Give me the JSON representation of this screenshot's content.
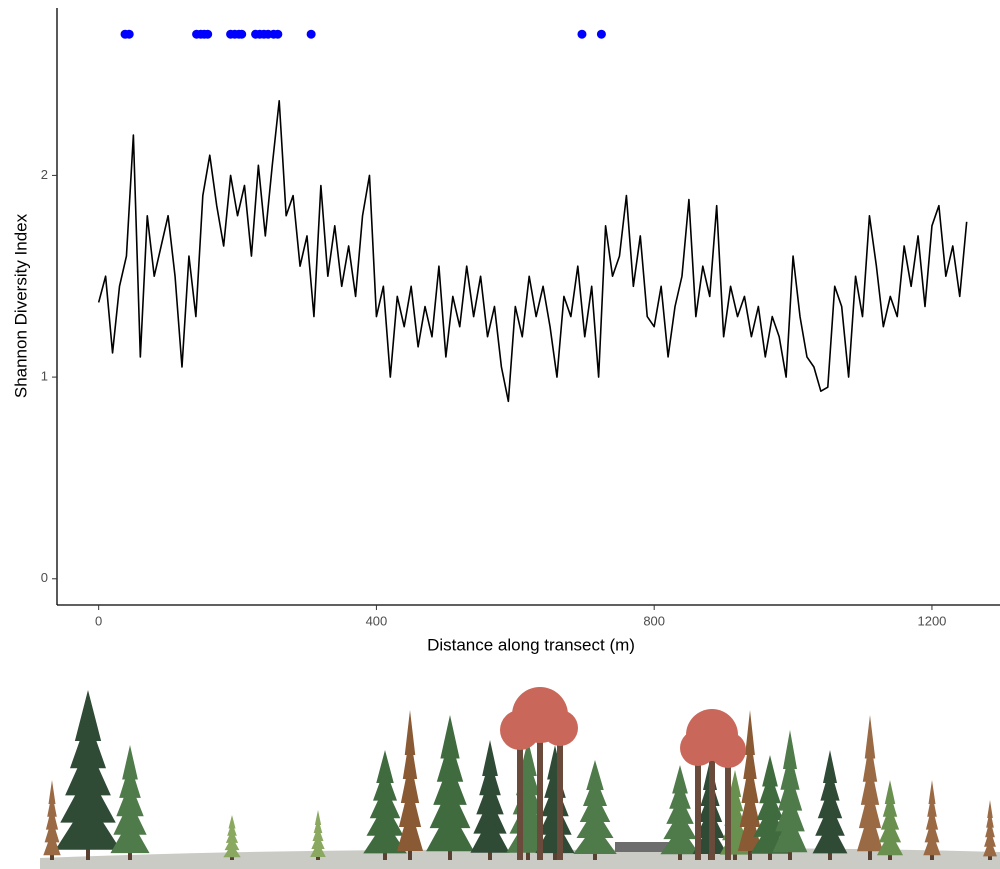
{
  "chart_data": {
    "type": "line",
    "xlabel": "Distance along transect (m)",
    "ylabel": "Shannon Diversity Index",
    "xlim": [
      -60,
      1298
    ],
    "ylim": [
      -0.13,
      2.83
    ],
    "xticks": [
      0,
      400,
      800,
      1200
    ],
    "yticks": [
      0,
      1,
      2
    ],
    "series": [
      {
        "type": "line",
        "color": "#000000",
        "x": [
          0,
          10,
          20,
          30,
          40,
          50,
          60,
          70,
          80,
          90,
          100,
          110,
          120,
          130,
          140,
          150,
          160,
          170,
          180,
          190,
          200,
          210,
          220,
          230,
          240,
          250,
          260,
          270,
          280,
          290,
          300,
          310,
          320,
          330,
          340,
          350,
          360,
          370,
          380,
          390,
          400,
          410,
          420,
          430,
          440,
          450,
          460,
          470,
          480,
          490,
          500,
          510,
          520,
          530,
          540,
          550,
          560,
          570,
          580,
          590,
          600,
          610,
          620,
          630,
          640,
          650,
          660,
          670,
          680,
          690,
          700,
          710,
          720,
          730,
          740,
          750,
          760,
          770,
          780,
          790,
          800,
          810,
          820,
          830,
          840,
          850,
          860,
          870,
          880,
          890,
          900,
          910,
          920,
          930,
          940,
          950,
          960,
          970,
          980,
          990,
          1000,
          1010,
          1020,
          1030,
          1040,
          1050,
          1060,
          1070,
          1080,
          1090,
          1100,
          1110,
          1120,
          1130,
          1140,
          1150,
          1160,
          1170,
          1180,
          1190,
          1200,
          1210,
          1220,
          1230,
          1240,
          1250
        ],
        "values": [
          1.37,
          1.5,
          1.12,
          1.45,
          1.6,
          2.2,
          1.1,
          1.8,
          1.5,
          1.65,
          1.8,
          1.5,
          1.05,
          1.6,
          1.3,
          1.9,
          2.1,
          1.85,
          1.65,
          2.0,
          1.8,
          1.95,
          1.6,
          2.05,
          1.7,
          2.05,
          2.37,
          1.8,
          1.9,
          1.55,
          1.7,
          1.3,
          1.95,
          1.5,
          1.75,
          1.45,
          1.65,
          1.4,
          1.8,
          2.0,
          1.3,
          1.45,
          1.0,
          1.4,
          1.25,
          1.45,
          1.15,
          1.35,
          1.2,
          1.55,
          1.1,
          1.4,
          1.25,
          1.55,
          1.3,
          1.5,
          1.2,
          1.35,
          1.05,
          0.88,
          1.35,
          1.2,
          1.5,
          1.3,
          1.45,
          1.25,
          1.0,
          1.4,
          1.3,
          1.55,
          1.2,
          1.45,
          1.0,
          1.75,
          1.5,
          1.6,
          1.9,
          1.45,
          1.7,
          1.3,
          1.25,
          1.45,
          1.1,
          1.35,
          1.5,
          1.88,
          1.3,
          1.55,
          1.4,
          1.85,
          1.2,
          1.45,
          1.3,
          1.4,
          1.2,
          1.35,
          1.1,
          1.3,
          1.2,
          1.0,
          1.6,
          1.3,
          1.1,
          1.05,
          0.93,
          0.95,
          1.45,
          1.35,
          1.0,
          1.5,
          1.3,
          1.8,
          1.55,
          1.25,
          1.4,
          1.3,
          1.65,
          1.45,
          1.7,
          1.35,
          1.75,
          1.85,
          1.5,
          1.65,
          1.4,
          1.77
        ]
      },
      {
        "type": "scatter",
        "color": "#0000ff",
        "x": [
          38,
          44,
          141,
          147,
          152,
          157,
          190,
          196,
          202,
          206,
          226,
          232,
          238,
          244,
          252,
          258,
          306,
          696,
          724
        ],
        "values": [
          2.7,
          2.7,
          2.7,
          2.7,
          2.7,
          2.7,
          2.7,
          2.7,
          2.7,
          2.7,
          2.7,
          2.7,
          2.7,
          2.7,
          2.7,
          2.7,
          2.7,
          2.7,
          2.7
        ]
      }
    ]
  }
}
